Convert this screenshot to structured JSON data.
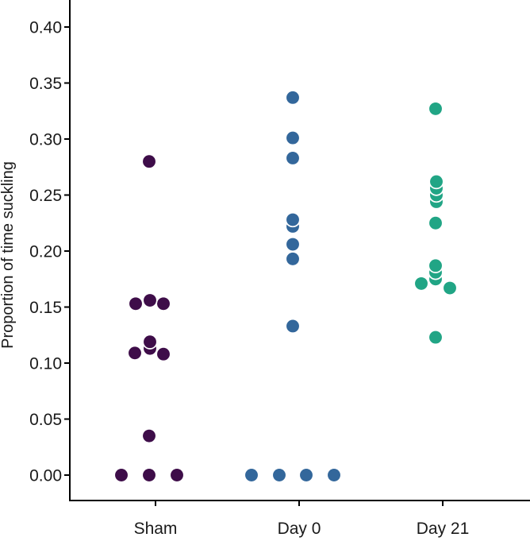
{
  "chart_data": {
    "type": "scatter",
    "title": "",
    "xlabel": "",
    "ylabel": "Proportion of time suckling",
    "ylim": [
      0,
      0.42
    ],
    "grid": false,
    "legend": "none",
    "categories": [
      "Sham",
      "Day 0",
      "Day 21"
    ],
    "yticks": [
      {
        "value": 0.0,
        "label": "0.00"
      },
      {
        "value": 0.05,
        "label": "0.05"
      },
      {
        "value": 0.1,
        "label": "0.10"
      },
      {
        "value": 0.15,
        "label": "0.15"
      },
      {
        "value": 0.2,
        "label": "0.20"
      },
      {
        "value": 0.25,
        "label": "0.25"
      },
      {
        "value": 0.3,
        "label": "0.30"
      },
      {
        "value": 0.35,
        "label": "0.35"
      },
      {
        "value": 0.4,
        "label": "0.40"
      }
    ],
    "series": [
      {
        "name": "Sham",
        "color": "#3E0D49",
        "points": [
          {
            "value": 0.0,
            "dx": -43
          },
          {
            "value": 0.0,
            "dx": -8
          },
          {
            "value": 0.0,
            "dx": 27
          },
          {
            "value": 0.035,
            "dx": -8
          },
          {
            "value": 0.108,
            "dx": 10
          },
          {
            "value": 0.109,
            "dx": -26
          },
          {
            "value": 0.113,
            "dx": -7
          },
          {
            "value": 0.119,
            "dx": -7
          },
          {
            "value": 0.153,
            "dx": -25
          },
          {
            "value": 0.153,
            "dx": 10
          },
          {
            "value": 0.156,
            "dx": -7
          },
          {
            "value": 0.28,
            "dx": -8
          }
        ]
      },
      {
        "name": "Day 0",
        "color": "#33679B",
        "points": [
          {
            "value": 0.0,
            "dx": -60
          },
          {
            "value": 0.0,
            "dx": -25
          },
          {
            "value": 0.0,
            "dx": 9
          },
          {
            "value": 0.0,
            "dx": 44
          },
          {
            "value": 0.133,
            "dx": -8
          },
          {
            "value": 0.193,
            "dx": -8
          },
          {
            "value": 0.206,
            "dx": -8
          },
          {
            "value": 0.222,
            "dx": -8
          },
          {
            "value": 0.228,
            "dx": -8
          },
          {
            "value": 0.283,
            "dx": -8
          },
          {
            "value": 0.301,
            "dx": -8
          },
          {
            "value": 0.337,
            "dx": -8
          }
        ]
      },
      {
        "name": "Day 21",
        "color": "#21A585",
        "points": [
          {
            "value": 0.123,
            "dx": -9
          },
          {
            "value": 0.167,
            "dx": 9
          },
          {
            "value": 0.171,
            "dx": -27
          },
          {
            "value": 0.175,
            "dx": -9
          },
          {
            "value": 0.181,
            "dx": -9
          },
          {
            "value": 0.187,
            "dx": -9
          },
          {
            "value": 0.225,
            "dx": -9
          },
          {
            "value": 0.244,
            "dx": -8
          },
          {
            "value": 0.25,
            "dx": -8
          },
          {
            "value": 0.256,
            "dx": -8
          },
          {
            "value": 0.262,
            "dx": -8
          },
          {
            "value": 0.327,
            "dx": -9
          }
        ]
      }
    ],
    "axis_color": "#000000",
    "point_outline_color": "#ffffff"
  }
}
